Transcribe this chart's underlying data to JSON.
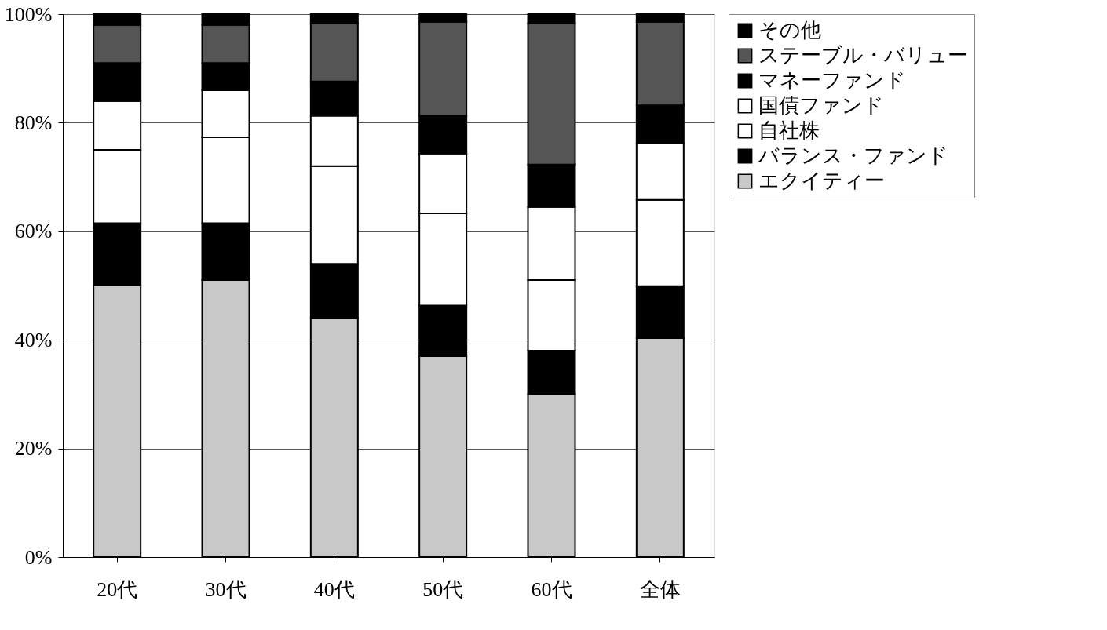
{
  "chart_data": {
    "type": "bar",
    "stacked": true,
    "categories": [
      "20代",
      "30代",
      "40代",
      "50代",
      "60代",
      "全体"
    ],
    "series": [
      {
        "name": "エクイティー",
        "color": "#c8c8c8",
        "values": [
          50,
          51,
          44,
          37,
          30,
          40.3
        ]
      },
      {
        "name": "バランス・ファンド",
        "color": "#000000",
        "values": [
          11.5,
          10.5,
          10,
          9.3,
          8,
          9.6
        ]
      },
      {
        "name": "自社株",
        "color": "#ffffff",
        "values": [
          13.5,
          15.8,
          18,
          17,
          13,
          15.9
        ]
      },
      {
        "name": "国債ファンド",
        "color": "#ffffff",
        "values": [
          9,
          8.7,
          9.3,
          11,
          13.5,
          10.4
        ]
      },
      {
        "name": "マネーファンド",
        "color": "#000000",
        "values": [
          7,
          5,
          6.3,
          7,
          7.8,
          7
        ]
      },
      {
        "name": "ステーブル・バリュー",
        "color": "#555555",
        "values": [
          7,
          7,
          10.7,
          17.3,
          26,
          15.4
        ]
      },
      {
        "name": "その他",
        "color": "#000000",
        "values": [
          2,
          2,
          1.7,
          1.4,
          1.7,
          1.4
        ]
      }
    ],
    "ylim": [
      0,
      100
    ],
    "yticks": [
      {
        "value": 0,
        "label": "0%"
      },
      {
        "value": 20,
        "label": "20%"
      },
      {
        "value": 40,
        "label": "40%"
      },
      {
        "value": 60,
        "label": "60%"
      },
      {
        "value": 80,
        "label": "80%"
      },
      {
        "value": 100,
        "label": "100%"
      }
    ],
    "grid": "y",
    "legend": "right"
  }
}
